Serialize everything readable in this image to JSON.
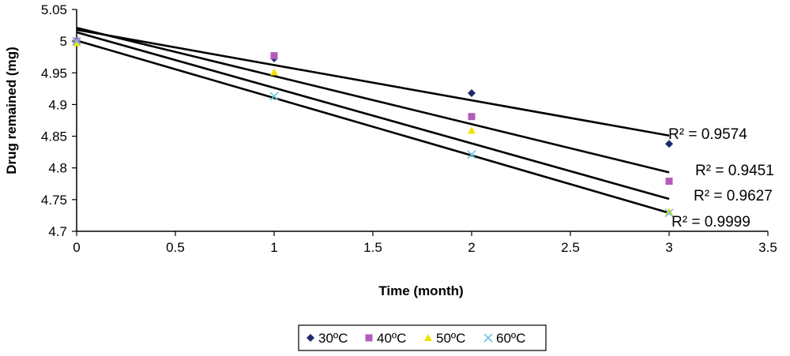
{
  "chart_data": {
    "type": "scatter",
    "xlabel": "Time (month)",
    "ylabel": "Drug remained (mg)",
    "xlim": [
      0,
      3.5
    ],
    "ylim": [
      4.7,
      5.05
    ],
    "xticks": [
      "0",
      "0.5",
      "1",
      "1.5",
      "2",
      "2.5",
      "3",
      "3.5"
    ],
    "yticks": [
      "4.7",
      "4.75",
      "4.8",
      "4.85",
      "4.9",
      "4.95",
      "5",
      "5.05"
    ],
    "grid": false,
    "legend_position": "bottom",
    "series": [
      {
        "name": "30ºC",
        "color": "#1f2a6e",
        "marker": "diamond",
        "x": [
          0,
          1,
          2,
          3
        ],
        "y": [
          5.0,
          4.973,
          4.918,
          4.838
        ],
        "trendline": {
          "x": [
            0,
            3
          ],
          "y": [
            5.018,
            4.851
          ]
        },
        "r2_label": "R² = 0.9574"
      },
      {
        "name": "40ºC",
        "color": "#b05cb8",
        "marker": "square",
        "x": [
          0,
          1,
          2,
          3
        ],
        "y": [
          5.0,
          4.977,
          4.881,
          4.779
        ],
        "trendline": {
          "x": [
            0,
            3
          ],
          "y": [
            5.021,
            4.793
          ]
        },
        "r2_label": "R² = 0.9451"
      },
      {
        "name": "50ºC",
        "color": "#f2e100",
        "marker": "triangle",
        "x": [
          0,
          1,
          2,
          3
        ],
        "y": [
          4.997,
          4.951,
          4.859,
          4.731
        ],
        "trendline": {
          "x": [
            0,
            3
          ],
          "y": [
            5.014,
            4.751
          ]
        },
        "r2_label": "R² = 0.9627"
      },
      {
        "name": "60ºC",
        "color": "#6cc4e0",
        "marker": "x",
        "x": [
          0,
          1,
          2,
          3
        ],
        "y": [
          5.0,
          4.913,
          4.821,
          4.729
        ],
        "trendline": {
          "x": [
            0,
            3
          ],
          "y": [
            5.001,
            4.729
          ]
        },
        "r2_label": "R² = 0.9999"
      }
    ]
  }
}
